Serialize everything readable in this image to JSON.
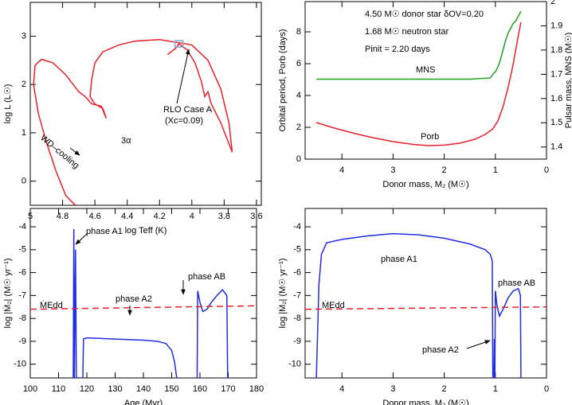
{
  "chart_data": [
    {
      "type": "line",
      "xlabel": "log Teff  (K)",
      "ylabel": "log L  (L☉)",
      "xlim": [
        5.0,
        3.57
      ],
      "xticks": [
        5,
        4.8,
        4.6,
        4.4,
        4.2,
        4,
        3.8,
        3.6
      ],
      "ylim": [
        -0.5,
        3.7
      ],
      "yticks": [
        0,
        1,
        2,
        3
      ],
      "series": [
        {
          "color": "#e8202a",
          "x": [
            4.15,
            4.1,
            4.08,
            4.03,
            3.98,
            3.94,
            3.92,
            3.9,
            3.88,
            3.82,
            3.75,
            3.77,
            3.82,
            3.9,
            4.0,
            4.2,
            4.35,
            4.45,
            4.55,
            4.6,
            4.62,
            4.63,
            4.6,
            4.55,
            4.53,
            4.56,
            4.62,
            4.66,
            4.7,
            4.78,
            4.86,
            4.93,
            4.97,
            4.98,
            4.95,
            4.9,
            4.84,
            4.78,
            4.72
          ],
          "values": [
            2.62,
            2.75,
            2.84,
            2.72,
            2.45,
            2.05,
            1.75,
            1.85,
            1.6,
            1.2,
            0.6,
            1.2,
            1.9,
            2.5,
            2.82,
            2.93,
            2.9,
            2.82,
            2.68,
            2.45,
            2.1,
            1.75,
            1.6,
            1.5,
            1.3,
            1.55,
            1.6,
            1.75,
            1.85,
            2.2,
            2.45,
            2.52,
            2.4,
            2.0,
            1.4,
            0.8,
            0.2,
            -0.3,
            -0.5
          ]
        }
      ],
      "markers": [
        {
          "x": 4.08,
          "y": 2.84,
          "color": "#7fa8d8"
        }
      ],
      "annotations": [
        "RLO Case A",
        "(Xc=0.09)",
        "3α",
        "WD–cooling"
      ]
    },
    {
      "type": "line",
      "xlabel": "Donor mass, M₂  (M☉)",
      "ylabel": "Orbital period, Porb  (days)",
      "y2label": "Pulsar mass, MNS  (M☉)",
      "xlim": [
        4.72,
        0
      ],
      "xticks": [
        4,
        3,
        2,
        1,
        0
      ],
      "ylim": [
        0,
        9.9
      ],
      "yticks": [
        0,
        2,
        4,
        6,
        8
      ],
      "y2lim": [
        1.35,
        2.0
      ],
      "y2ticks": [
        1.4,
        1.5,
        1.6,
        1.7,
        1.8,
        1.9,
        2
      ],
      "series": [
        {
          "color": "#e8202a",
          "x": [
            4.5,
            4.2,
            3.8,
            3.4,
            3.0,
            2.6,
            2.3,
            2.0,
            1.7,
            1.4,
            1.2,
            1.05,
            0.95,
            0.85,
            0.75,
            0.65,
            0.55,
            0.5
          ],
          "values": [
            2.3,
            2.0,
            1.65,
            1.35,
            1.1,
            0.92,
            0.85,
            0.88,
            1.0,
            1.25,
            1.55,
            1.9,
            2.4,
            3.3,
            4.5,
            6.0,
            7.8,
            8.6
          ]
        },
        {
          "color": "#22a022",
          "axis": "y2",
          "x": [
            4.5,
            3.5,
            2.5,
            1.5,
            1.1,
            1.05,
            1.0,
            0.95,
            0.9,
            0.85,
            0.8,
            0.75,
            0.7,
            0.65,
            0.6,
            0.55,
            0.5
          ],
          "values": [
            1.68,
            1.68,
            1.68,
            1.68,
            1.685,
            1.7,
            1.71,
            1.73,
            1.76,
            1.8,
            1.84,
            1.87,
            1.89,
            1.91,
            1.92,
            1.94,
            1.96
          ]
        }
      ],
      "annotations": [
        "4.50 M☉ donor star   δOV=0.20",
        "1.68 M☉ neutron star",
        "Pinit = 2.20 days",
        "MNS",
        "Porb"
      ]
    },
    {
      "type": "line",
      "xlabel": "Age  (Myr)",
      "ylabel": "log |Ṁ₂|  (M☉ yr⁻¹)",
      "xlim": [
        100,
        180
      ],
      "xticks": [
        100,
        110,
        120,
        130,
        140,
        150,
        160,
        170,
        180
      ],
      "ylim": [
        -10.6,
        -3.2
      ],
      "yticks": [
        -10,
        -9,
        -8,
        -7,
        -6,
        -5,
        -4
      ],
      "series": [
        {
          "color": "#1f2ee0",
          "x": [
            115.2,
            115.4,
            115.6,
            116.0,
            116.3,
            118.6,
            118.8,
            120,
            130,
            140,
            145,
            148,
            150,
            151,
            151.8,
            155,
            159,
            159.2,
            160,
            161,
            162.5,
            164,
            166,
            168,
            169.5,
            169.8
          ],
          "values": [
            -10.6,
            -4.1,
            -10.6,
            -5.0,
            -10.6,
            -10.6,
            -8.9,
            -8.85,
            -8.9,
            -8.95,
            -9.0,
            -9.1,
            -9.4,
            -9.9,
            -10.6,
            null,
            -10.6,
            -6.8,
            -7.3,
            -7.7,
            -7.6,
            -7.3,
            -7.0,
            -6.75,
            -7.0,
            -10.6
          ]
        },
        {
          "color": "#e8202a",
          "dashed": true,
          "x": [
            100,
            180
          ],
          "values": [
            -7.6,
            -7.45
          ]
        }
      ],
      "annotations": [
        "phase A1",
        "phase A2",
        "phase AB",
        "ṀEdd"
      ]
    },
    {
      "type": "line",
      "xlabel": "Donor mass, M₂  (M☉)",
      "ylabel": "log |Ṁ₂|  (M☉ yr⁻¹)",
      "xlim": [
        4.72,
        0
      ],
      "xticks": [
        4,
        3,
        2,
        1,
        0
      ],
      "ylim": [
        -10.6,
        -3.2
      ],
      "yticks": [
        -10,
        -9,
        -8,
        -7,
        -6,
        -5,
        -4
      ],
      "series": [
        {
          "color": "#1f2ee0",
          "x": [
            4.5,
            4.45,
            4.4,
            4.3,
            4.0,
            3.5,
            3.0,
            2.5,
            2.0,
            1.5,
            1.2,
            1.1,
            1.06,
            1.05,
            1.03,
            1.02,
            1.01,
            1.0,
            0.97,
            0.92,
            0.85,
            0.75,
            0.65,
            0.55,
            0.51,
            0.5
          ],
          "values": [
            -10.6,
            -6.5,
            -5.2,
            -4.7,
            -4.55,
            -4.4,
            -4.3,
            -4.35,
            -4.5,
            -4.75,
            -5.0,
            -5.2,
            -5.5,
            -10.6,
            -10.6,
            -8.9,
            -10.6,
            -6.8,
            -7.4,
            -7.9,
            -7.6,
            -7.1,
            -6.8,
            -6.7,
            -7.0,
            -10.6
          ]
        },
        {
          "color": "#e8202a",
          "dashed": true,
          "x": [
            4.72,
            0
          ],
          "values": [
            -7.6,
            -7.5
          ]
        }
      ],
      "annotations": [
        "phase A1",
        "phase AB",
        "phase A2",
        "ṀEdd"
      ]
    }
  ]
}
